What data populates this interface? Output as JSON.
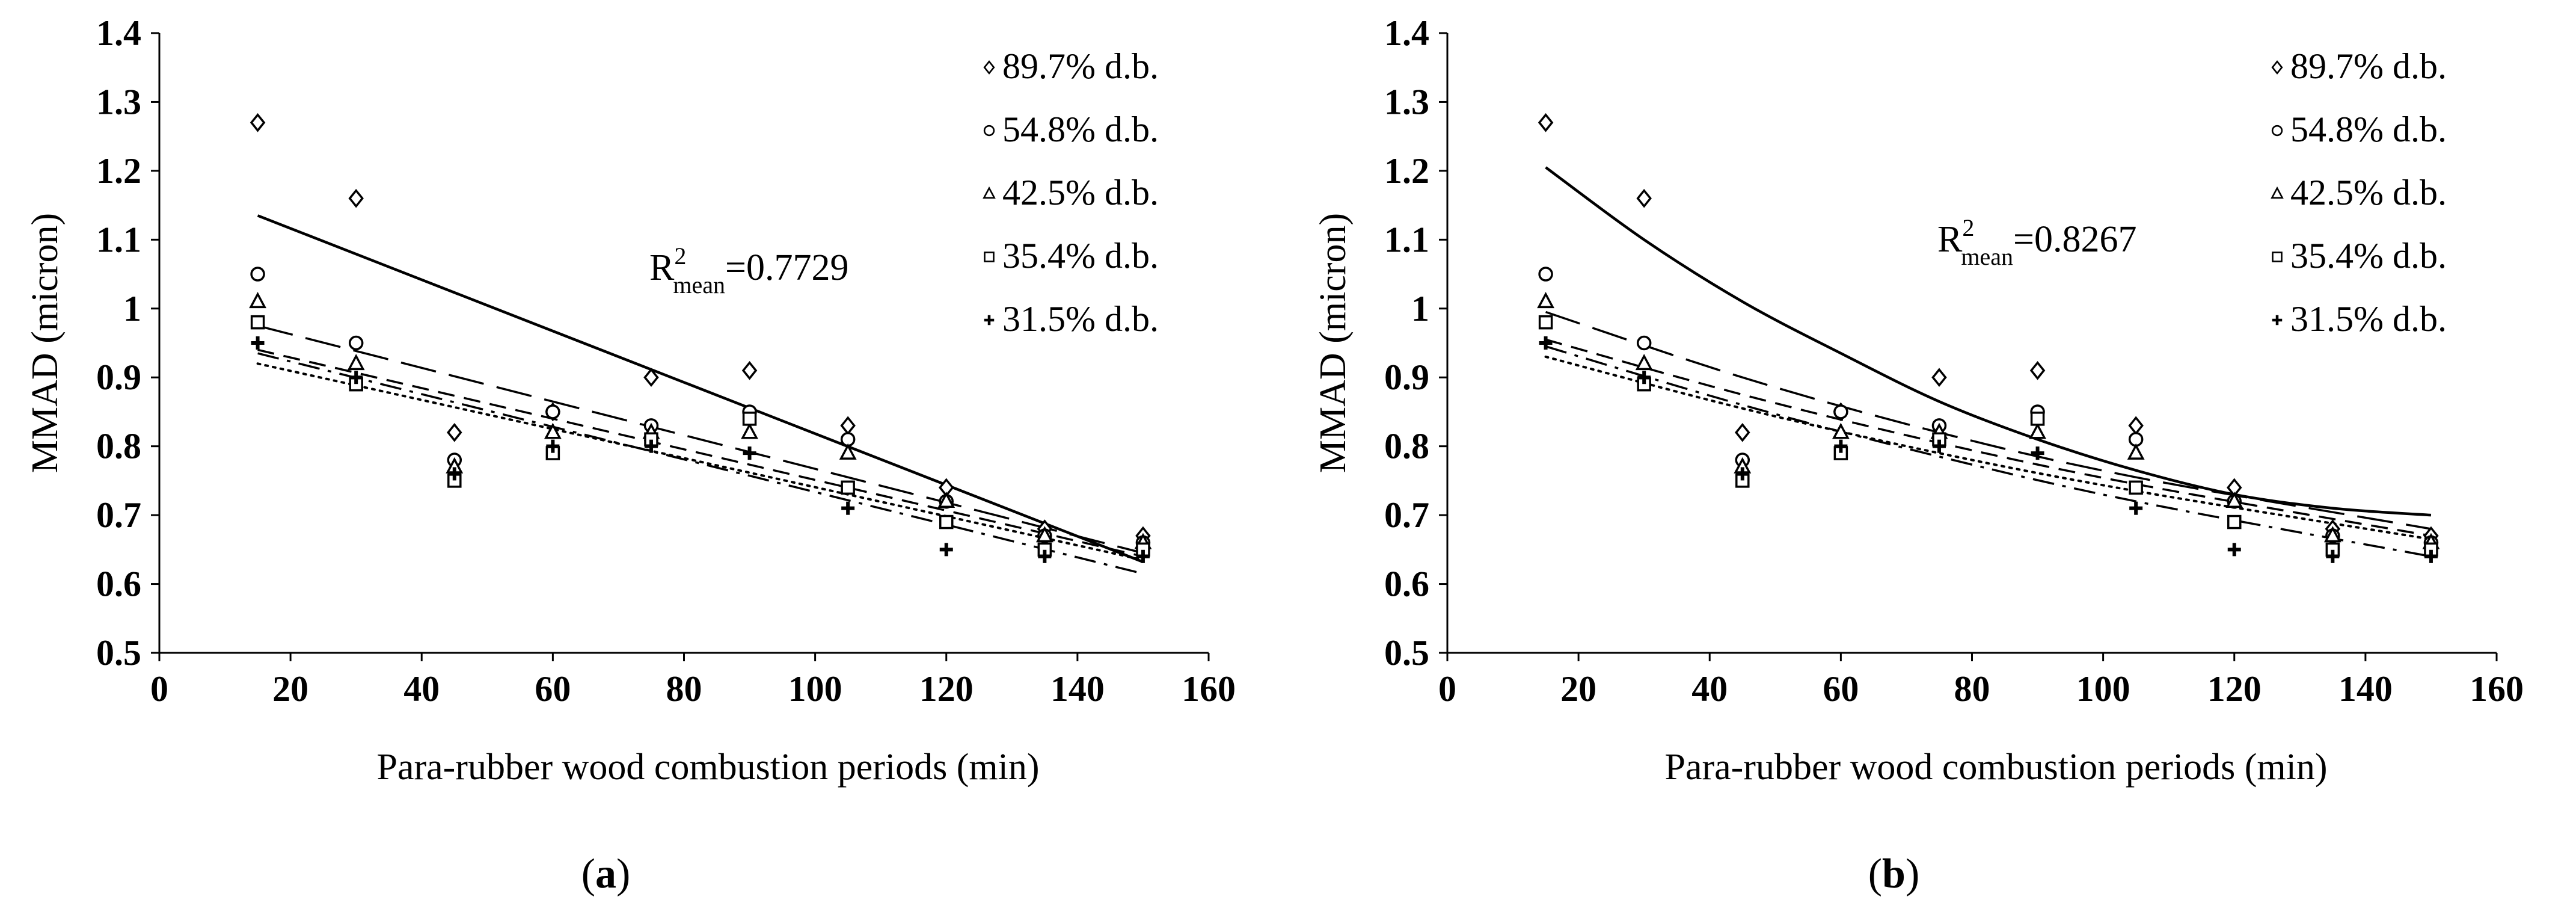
{
  "chart_data": [
    {
      "panel_label": "a",
      "type": "scatter",
      "xlabel": "Para-rubber wood combustion periods (min)",
      "ylabel": "MMAD (micron)",
      "xlim": [
        0,
        160
      ],
      "ylim": [
        0.5,
        1.4
      ],
      "xticks": [
        "0",
        "20",
        "40",
        "60",
        "80",
        "100",
        "120",
        "140",
        "160"
      ],
      "yticks": [
        "0.5",
        "0.6",
        "0.7",
        "0.8",
        "0.9",
        "1",
        "1.1",
        "1.2",
        "1.3",
        "1.4"
      ],
      "grid": false,
      "legend_position": "top-right",
      "annotation": {
        "prefix": "R",
        "sup": "2",
        "sub": "mean",
        "suffix": "=0.7729"
      },
      "fit": "linear",
      "series": [
        {
          "name": "89.7% d.b.",
          "marker": "diamond",
          "line_style": "solid",
          "x": [
            15,
            30,
            45,
            60,
            75,
            90,
            105,
            120,
            135,
            150
          ],
          "y": [
            1.27,
            1.16,
            0.82,
            0.85,
            0.9,
            0.91,
            0.83,
            0.74,
            0.68,
            0.67
          ],
          "fit_line": [
            [
              15,
              1.135
            ],
            [
              150,
              0.632
            ]
          ]
        },
        {
          "name": "54.8% d.b.",
          "marker": "circle",
          "line_style": "long-dash",
          "x": [
            15,
            30,
            45,
            60,
            75,
            90,
            105,
            120,
            135,
            150
          ],
          "y": [
            1.05,
            0.95,
            0.78,
            0.85,
            0.83,
            0.85,
            0.81,
            0.72,
            0.67,
            0.66
          ],
          "fit_line": [
            [
              15,
              0.975
            ],
            [
              150,
              0.645
            ]
          ]
        },
        {
          "name": "42.5% d.b.",
          "marker": "triangle",
          "line_style": "short-dash",
          "x": [
            15,
            30,
            45,
            60,
            75,
            90,
            105,
            120,
            135,
            150
          ],
          "y": [
            1.01,
            0.92,
            0.77,
            0.82,
            0.82,
            0.82,
            0.79,
            0.72,
            0.67,
            0.66
          ],
          "fit_line": [
            [
              15,
              0.94
            ],
            [
              150,
              0.64
            ]
          ]
        },
        {
          "name": "35.4% d.b.",
          "marker": "square",
          "line_style": "dotted",
          "x": [
            15,
            30,
            45,
            60,
            75,
            90,
            105,
            120,
            135,
            150
          ],
          "y": [
            0.98,
            0.89,
            0.75,
            0.79,
            0.81,
            0.84,
            0.74,
            0.69,
            0.65,
            0.65
          ],
          "fit_line": [
            [
              15,
              0.92
            ],
            [
              150,
              0.635
            ]
          ]
        },
        {
          "name": "31.5% d.b.",
          "marker": "plus",
          "line_style": "dash-dot",
          "x": [
            15,
            30,
            45,
            60,
            75,
            90,
            105,
            120,
            135,
            150
          ],
          "y": [
            0.95,
            0.9,
            0.76,
            0.8,
            0.8,
            0.79,
            0.71,
            0.65,
            0.64,
            0.64
          ],
          "fit_line": [
            [
              15,
              0.935
            ],
            [
              150,
              0.615
            ]
          ]
        }
      ]
    },
    {
      "panel_label": "b",
      "type": "scatter",
      "xlabel": "Para-rubber wood combustion periods (min)",
      "ylabel": "MMAD (micron)",
      "xlim": [
        0,
        160
      ],
      "ylim": [
        0.5,
        1.4
      ],
      "xticks": [
        "0",
        "20",
        "40",
        "60",
        "80",
        "100",
        "120",
        "140",
        "160"
      ],
      "yticks": [
        "0.5",
        "0.6",
        "0.7",
        "0.8",
        "0.9",
        "1",
        "1.1",
        "1.2",
        "1.3",
        "1.4"
      ],
      "grid": false,
      "legend_position": "top-right",
      "annotation": {
        "prefix": "R",
        "sup": "2",
        "sub": "mean",
        "suffix": "=0.8267"
      },
      "fit": "curve",
      "series": [
        {
          "name": "89.7% d.b.",
          "marker": "diamond",
          "line_style": "solid",
          "x": [
            15,
            30,
            45,
            60,
            75,
            90,
            105,
            120,
            135,
            150
          ],
          "y": [
            1.27,
            1.16,
            0.82,
            0.85,
            0.9,
            0.91,
            0.83,
            0.74,
            0.68,
            0.67
          ],
          "fit_line": [
            [
              15,
              1.205
            ],
            [
              30,
              1.1
            ],
            [
              45,
              1.01
            ],
            [
              60,
              0.935
            ],
            [
              75,
              0.865
            ],
            [
              90,
              0.81
            ],
            [
              105,
              0.765
            ],
            [
              120,
              0.73
            ],
            [
              135,
              0.71
            ],
            [
              150,
              0.7
            ]
          ]
        },
        {
          "name": "54.8% d.b.",
          "marker": "circle",
          "line_style": "long-dash",
          "x": [
            15,
            30,
            45,
            60,
            75,
            90,
            105,
            120,
            135,
            150
          ],
          "y": [
            1.05,
            0.95,
            0.78,
            0.85,
            0.83,
            0.85,
            0.81,
            0.72,
            0.67,
            0.66
          ],
          "fit_line": [
            [
              15,
              0.995
            ],
            [
              45,
              0.9
            ],
            [
              75,
              0.82
            ],
            [
              105,
              0.755
            ],
            [
              150,
              0.68
            ]
          ]
        },
        {
          "name": "42.5% d.b.",
          "marker": "triangle",
          "line_style": "short-dash",
          "x": [
            15,
            30,
            45,
            60,
            75,
            90,
            105,
            120,
            135,
            150
          ],
          "y": [
            1.01,
            0.92,
            0.77,
            0.82,
            0.82,
            0.82,
            0.79,
            0.72,
            0.67,
            0.66
          ],
          "fit_line": [
            [
              15,
              0.955
            ],
            [
              45,
              0.875
            ],
            [
              75,
              0.805
            ],
            [
              105,
              0.745
            ],
            [
              150,
              0.67
            ]
          ]
        },
        {
          "name": "35.4% d.b.",
          "marker": "square",
          "line_style": "dotted",
          "x": [
            15,
            30,
            45,
            60,
            75,
            90,
            105,
            120,
            135,
            150
          ],
          "y": [
            0.98,
            0.89,
            0.75,
            0.79,
            0.81,
            0.84,
            0.74,
            0.69,
            0.65,
            0.65
          ],
          "fit_line": [
            [
              15,
              0.93
            ],
            [
              45,
              0.855
            ],
            [
              75,
              0.79
            ],
            [
              105,
              0.735
            ],
            [
              150,
              0.665
            ]
          ]
        },
        {
          "name": "31.5% d.b.",
          "marker": "plus",
          "line_style": "dash-dot",
          "x": [
            15,
            30,
            45,
            60,
            75,
            90,
            105,
            120,
            135,
            150
          ],
          "y": [
            0.95,
            0.9,
            0.76,
            0.8,
            0.8,
            0.79,
            0.71,
            0.65,
            0.64,
            0.64
          ],
          "fit_line": [
            [
              15,
              0.945
            ],
            [
              45,
              0.86
            ],
            [
              75,
              0.785
            ],
            [
              105,
              0.72
            ],
            [
              150,
              0.64
            ]
          ]
        }
      ]
    }
  ]
}
